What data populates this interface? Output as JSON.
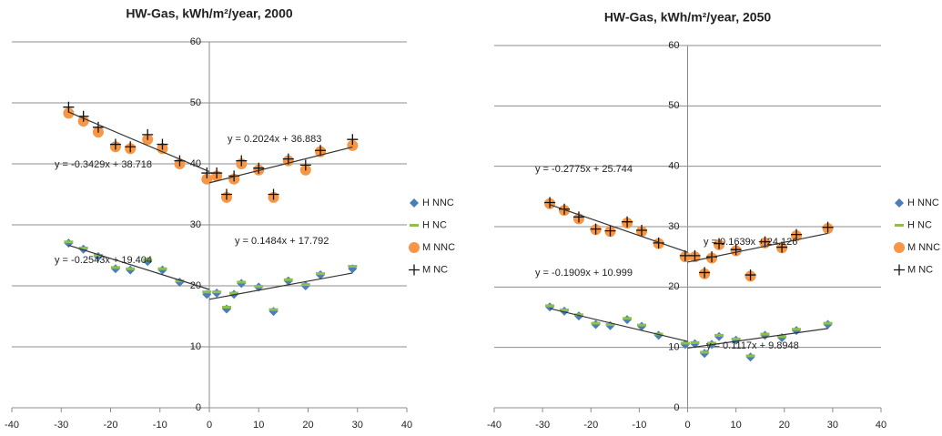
{
  "chart_data": [
    {
      "type": "scatter",
      "title": "HW-Gas, kWh/m²/year, 2000",
      "xlim": [
        -40,
        40
      ],
      "xticks": [
        -40,
        -30,
        -20,
        -10,
        0,
        10,
        20,
        30,
        40
      ],
      "ylim": [
        0,
        60
      ],
      "yticks": [
        0,
        10,
        20,
        30,
        40,
        50,
        60
      ],
      "grid": true,
      "series": [
        {
          "name": "H NNC",
          "color": "#4a7ebb",
          "marker": "diamond",
          "x": [
            -28.5,
            -25.5,
            -22.5,
            -19,
            -16,
            -12.5,
            -9.5,
            -6,
            -0.5,
            1.5,
            3.5,
            5,
            6.5,
            10,
            13,
            16,
            19.5,
            22.5,
            29
          ],
          "values": [
            27,
            26,
            24.8,
            22.8,
            22.6,
            24,
            22.6,
            20.6,
            18.6,
            18.8,
            16.2,
            18.6,
            20.4,
            19.8,
            15.8,
            20.8,
            20,
            21.8,
            22.8
          ]
        },
        {
          "name": "H NC",
          "color": "#8cbf4f",
          "marker": "dash",
          "x": [
            -28.5,
            -25.5,
            -22.5,
            -19,
            -16,
            -12.5,
            -9.5,
            -6,
            -0.5,
            1.5,
            3.5,
            5,
            6.5,
            10,
            13,
            16,
            19.5,
            22.5,
            29
          ],
          "values": [
            27.2,
            26.2,
            25,
            23,
            22.8,
            24.3,
            22.8,
            20.8,
            19,
            19,
            16.5,
            18.8,
            20.6,
            19.9,
            16.1,
            21,
            20.2,
            22,
            23.2
          ]
        },
        {
          "name": "M NNC",
          "color": "#f79646",
          "marker": "circle",
          "x": [
            -28.5,
            -25.5,
            -22.5,
            -19,
            -16,
            -12.5,
            -9.5,
            -6,
            -0.5,
            1.5,
            3.5,
            5,
            6.5,
            10,
            13,
            16,
            19.5,
            22.5,
            29
          ],
          "values": [
            48.3,
            47,
            45.2,
            42.8,
            42.5,
            44,
            42.5,
            40,
            37.5,
            38,
            34.5,
            37.5,
            40,
            39,
            34.5,
            40.5,
            39,
            42,
            43
          ]
        },
        {
          "name": "M NC",
          "color": "#111111",
          "marker": "plus",
          "x": [
            -28.5,
            -25.5,
            -22.5,
            -19,
            -16,
            -12.5,
            -9.5,
            -6,
            -0.5,
            1.5,
            3.5,
            5,
            6.5,
            10,
            13,
            16,
            19.5,
            22.5,
            29
          ],
          "values": [
            49.3,
            47.8,
            46,
            43.2,
            42.8,
            44.8,
            43.2,
            40.5,
            38.5,
            38.5,
            35,
            38,
            40.5,
            39.3,
            35,
            40.8,
            39.8,
            42.2,
            44
          ]
        }
      ],
      "trendlines": [
        {
          "label": "y = -0.3429x + 38.718",
          "slope": -0.3429,
          "intercept": 38.718
        },
        {
          "label": "y = 0.2024x + 36.883",
          "slope": 0.2024,
          "intercept": 36.883
        },
        {
          "label": "y = -0.2543x + 19.404",
          "slope": -0.2543,
          "intercept": 19.404
        },
        {
          "label": "y = 0.1484x + 17.792",
          "slope": 0.1484,
          "intercept": 17.792
        }
      ]
    },
    {
      "type": "scatter",
      "title": "HW-Gas, kWh/m²/year, 2050",
      "xlim": [
        -40,
        40
      ],
      "xticks": [
        -40,
        -30,
        -20,
        -10,
        0,
        10,
        20,
        30,
        40
      ],
      "ylim": [
        0,
        60
      ],
      "yticks": [
        0,
        10,
        20,
        30,
        40,
        50,
        60
      ],
      "grid": true,
      "series": [
        {
          "name": "H NNC",
          "color": "#4a7ebb",
          "marker": "diamond",
          "x": [
            -28.5,
            -25.5,
            -22.5,
            -19,
            -16,
            -12.5,
            -9.5,
            -6,
            -0.5,
            1.5,
            3.5,
            5,
            6.5,
            10,
            13,
            16,
            19.5,
            22.5,
            29
          ],
          "values": [
            16.7,
            16,
            15.2,
            13.8,
            13.6,
            14.6,
            13.5,
            12,
            10.5,
            10.6,
            9,
            10.5,
            11.8,
            11.2,
            8.4,
            12,
            11.6,
            12.8,
            13.8
          ]
        },
        {
          "name": "H NC",
          "color": "#8cbf4f",
          "marker": "dash",
          "x": [
            -28.5,
            -25.5,
            -22.5,
            -19,
            -16,
            -12.5,
            -9.5,
            -6,
            -0.5,
            1.5,
            3.5,
            5,
            6.5,
            10,
            13,
            16,
            19.5,
            22.5,
            29
          ],
          "values": [
            16.9,
            16.2,
            15.4,
            14,
            13.8,
            14.8,
            13.7,
            12.2,
            10.7,
            10.8,
            9.2,
            10.7,
            12,
            11.4,
            8.6,
            12.2,
            11.8,
            13,
            14
          ]
        },
        {
          "name": "M NNC",
          "color": "#f79646",
          "marker": "circle",
          "x": [
            -28.5,
            -25.5,
            -22.5,
            -19,
            -16,
            -12.5,
            -9.5,
            -6,
            -0.5,
            1.5,
            3.5,
            5,
            6.5,
            10,
            13,
            16,
            19.5,
            22.5,
            29
          ],
          "values": [
            33.8,
            32.7,
            31.3,
            29.5,
            29.2,
            30.6,
            29.2,
            27.2,
            25,
            25,
            22.2,
            24.8,
            27,
            26,
            21.8,
            27.3,
            26.5,
            28.5,
            29.7
          ]
        },
        {
          "name": "M NC",
          "color": "#111111",
          "marker": "plus",
          "x": [
            -28.5,
            -25.5,
            -22.5,
            -19,
            -16,
            -12.5,
            -9.5,
            -6,
            -0.5,
            1.5,
            3.5,
            5,
            6.5,
            10,
            13,
            16,
            19.5,
            22.5,
            29
          ],
          "values": [
            34,
            32.9,
            31.6,
            29.6,
            29.3,
            30.8,
            29.4,
            27.3,
            25.2,
            25.2,
            22.4,
            25,
            27.2,
            26.2,
            22,
            27.5,
            26.6,
            28.7,
            29.9
          ]
        }
      ],
      "trendlines": [
        {
          "label": "y = -0.2775x + 25.744",
          "slope": -0.2775,
          "intercept": 25.744
        },
        {
          "label": "y = 0.1639x + 24.126",
          "slope": 0.1639,
          "intercept": 24.126
        },
        {
          "label": "y = -0.1909x + 10.999",
          "slope": -0.1909,
          "intercept": 10.999
        },
        {
          "label": "y = 0.1117x + 9.8948",
          "slope": 0.1117,
          "intercept": 9.8948
        }
      ]
    }
  ]
}
